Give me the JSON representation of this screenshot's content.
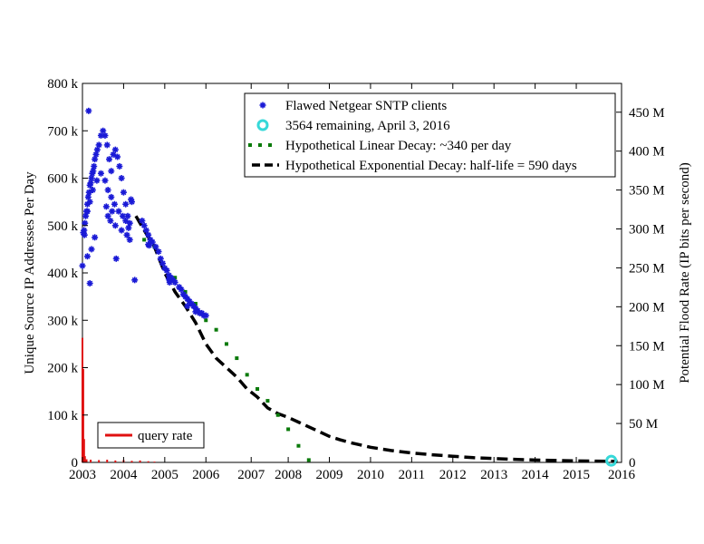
{
  "chart_data": {
    "type": "scatter",
    "x_axis": {
      "ticks": [
        {
          "value": 2003,
          "label": "2003"
        },
        {
          "value": 2004,
          "label": "2004"
        },
        {
          "value": 2005,
          "label": "2005"
        },
        {
          "value": 2006,
          "label": "2006"
        },
        {
          "value": 2007.1,
          "label": "2007"
        },
        {
          "value": 2008,
          "label": "2008"
        },
        {
          "value": 2009,
          "label": "2009"
        },
        {
          "value": 2010,
          "label": "2010"
        },
        {
          "value": 2011,
          "label": "2011"
        },
        {
          "value": 2012,
          "label": "2012"
        },
        {
          "value": 2013,
          "label": "2013"
        },
        {
          "value": 2014,
          "label": "2014"
        },
        {
          "value": 2015,
          "label": "2015"
        },
        {
          "value": 2016.1,
          "label": "2016"
        }
      ],
      "range": [
        2003,
        2016.1
      ]
    },
    "y_left": {
      "label": "Unique Source IP Addresses Per Day",
      "ticks": [
        {
          "value": 0,
          "label": "0"
        },
        {
          "value": 100000,
          "label": "100 k"
        },
        {
          "value": 200000,
          "label": "200 k"
        },
        {
          "value": 300000,
          "label": "300 k"
        },
        {
          "value": 400000,
          "label": "400 k"
        },
        {
          "value": 500000,
          "label": "500 k"
        },
        {
          "value": 600000,
          "label": "600 k"
        },
        {
          "value": 700000,
          "label": "700 k"
        },
        {
          "value": 800000,
          "label": "800 k"
        }
      ],
      "range": [
        0,
        800000
      ]
    },
    "y_right": {
      "label": "Potential Flood Rate (IP bits per second)",
      "ticks": [
        {
          "value": 0,
          "label": "0"
        },
        {
          "value": 50000000,
          "label": "50 M"
        },
        {
          "value": 100000000,
          "label": "100 M"
        },
        {
          "value": 150000000,
          "label": "150 M"
        },
        {
          "value": 200000000,
          "label": "200 M"
        },
        {
          "value": 250000000,
          "label": "250 M"
        },
        {
          "value": 300000000,
          "label": "300 M"
        },
        {
          "value": 350000000,
          "label": "350 M"
        },
        {
          "value": 400000000,
          "label": "400 M"
        },
        {
          "value": 450000000,
          "label": "450 M"
        }
      ],
      "range": [
        0,
        487000000
      ]
    },
    "legend": {
      "placement": "top-right",
      "entries": [
        {
          "label": "Flawed Netgear SNTP clients",
          "symbol": "star",
          "color": "#1a1ad6"
        },
        {
          "label": "3564 remaining, April 3, 2016",
          "symbol": "ring",
          "color": "#36d8d8"
        },
        {
          "label": "Hypothetical Linear Decay: ~340 per day",
          "symbol": "dotted",
          "color": "#0a7a0a"
        },
        {
          "label": "Hypothetical Exponential Decay: half-life = 590 days",
          "symbol": "dashed",
          "color": "#000000"
        }
      ]
    },
    "secondary_legend": {
      "placement": "bottom-left",
      "entries": [
        {
          "label": "query rate",
          "symbol": "line",
          "color": "#e01010"
        }
      ]
    },
    "series": [
      {
        "name": "Flawed Netgear SNTP clients",
        "color": "#1a1ad6",
        "points": [
          [
            2003.02,
            485000
          ],
          [
            2003.04,
            490000
          ],
          [
            2003.06,
            505000
          ],
          [
            2003.08,
            520000
          ],
          [
            2003.1,
            530000
          ],
          [
            2003.12,
            545000
          ],
          [
            2003.14,
            560000
          ],
          [
            2003.16,
            570000
          ],
          [
            2003.18,
            585000
          ],
          [
            2003.2,
            590000
          ],
          [
            2003.22,
            600000
          ],
          [
            2003.24,
            610000
          ],
          [
            2003.26,
            615000
          ],
          [
            2003.28,
            625000
          ],
          [
            2003.3,
            640000
          ],
          [
            2003.33,
            650000
          ],
          [
            2003.36,
            660000
          ],
          [
            2003.4,
            670000
          ],
          [
            2003.45,
            690000
          ],
          [
            2003.5,
            700000
          ],
          [
            2003.55,
            690000
          ],
          [
            2003.6,
            670000
          ],
          [
            2003.65,
            640000
          ],
          [
            2003.7,
            615000
          ],
          [
            2003.75,
            650000
          ],
          [
            2003.8,
            660000
          ],
          [
            2003.85,
            645000
          ],
          [
            2003.9,
            625000
          ],
          [
            2003.95,
            600000
          ],
          [
            2004.0,
            570000
          ],
          [
            2004.05,
            545000
          ],
          [
            2004.1,
            520000
          ],
          [
            2004.15,
            505000
          ],
          [
            2003.12,
            530000
          ],
          [
            2003.18,
            550000
          ],
          [
            2003.25,
            575000
          ],
          [
            2003.35,
            595000
          ],
          [
            2003.45,
            610000
          ],
          [
            2003.55,
            595000
          ],
          [
            2003.62,
            575000
          ],
          [
            2003.7,
            560000
          ],
          [
            2003.78,
            545000
          ],
          [
            2003.88,
            530000
          ],
          [
            2003.98,
            520000
          ],
          [
            2004.05,
            510000
          ],
          [
            2004.12,
            495000
          ],
          [
            2003.58,
            540000
          ],
          [
            2003.62,
            520000
          ],
          [
            2003.68,
            510000
          ],
          [
            2003.72,
            530000
          ],
          [
            2003.8,
            500000
          ],
          [
            2003.95,
            490000
          ],
          [
            2004.08,
            480000
          ],
          [
            2004.15,
            470000
          ],
          [
            2004.18,
            555000
          ],
          [
            2004.2,
            550000
          ],
          [
            2003.12,
            435000
          ],
          [
            2003.22,
            450000
          ],
          [
            2003.3,
            475000
          ],
          [
            2003.18,
            378000
          ],
          [
            2003.15,
            742000
          ],
          [
            2003.82,
            430000
          ],
          [
            2004.27,
            385000
          ],
          [
            2003.0,
            415000
          ],
          [
            2003.05,
            480000
          ],
          [
            2004.45,
            510000
          ],
          [
            2004.5,
            500000
          ],
          [
            2004.55,
            490000
          ],
          [
            2004.6,
            480000
          ],
          [
            2004.65,
            470000
          ],
          [
            2004.7,
            465000
          ],
          [
            2004.78,
            455000
          ],
          [
            2004.85,
            445000
          ],
          [
            2004.9,
            430000
          ],
          [
            2004.95,
            420000
          ],
          [
            2005.0,
            410000
          ],
          [
            2005.05,
            405000
          ],
          [
            2005.1,
            395000
          ],
          [
            2005.15,
            390000
          ],
          [
            2005.2,
            385000
          ],
          [
            2005.25,
            380000
          ],
          [
            2005.35,
            370000
          ],
          [
            2005.4,
            365000
          ],
          [
            2005.45,
            355000
          ],
          [
            2005.5,
            350000
          ],
          [
            2005.55,
            345000
          ],
          [
            2005.6,
            340000
          ],
          [
            2005.65,
            335000
          ],
          [
            2005.7,
            330000
          ],
          [
            2005.75,
            325000
          ],
          [
            2005.8,
            320000
          ],
          [
            2005.85,
            315000
          ],
          [
            2005.9,
            315000
          ],
          [
            2005.95,
            310000
          ],
          [
            2006.0,
            310000
          ],
          [
            2004.6,
            460000
          ],
          [
            2004.62,
            458000
          ],
          [
            2005.1,
            387000
          ],
          [
            2005.12,
            380000
          ],
          [
            2005.55,
            330000
          ],
          [
            2005.75,
            318000
          ]
        ]
      },
      {
        "name": "3564 remaining, April 3, 2016",
        "color": "#36d8d8",
        "points": [
          [
            2015.85,
            3564
          ]
        ]
      },
      {
        "name": "Hypothetical Linear Decay: ~340 per day",
        "color": "#0a7a0a",
        "points": [
          [
            2004.5,
            470000
          ],
          [
            2004.75,
            455000
          ],
          [
            2005.0,
            410000
          ],
          [
            2005.25,
            390000
          ],
          [
            2005.5,
            360000
          ],
          [
            2005.75,
            335000
          ],
          [
            2006.0,
            300000
          ],
          [
            2006.25,
            280000
          ],
          [
            2006.5,
            250000
          ],
          [
            2006.75,
            220000
          ],
          [
            2007.0,
            185000
          ],
          [
            2007.25,
            155000
          ],
          [
            2007.5,
            130000
          ],
          [
            2007.75,
            100000
          ],
          [
            2008.0,
            70000
          ],
          [
            2008.25,
            35000
          ],
          [
            2008.5,
            5000
          ]
        ]
      },
      {
        "name": "Hypothetical Exponential Decay: half-life = 590 days",
        "color": "#000000",
        "points": [
          [
            2004.3,
            520000
          ],
          [
            2004.5,
            490000
          ],
          [
            2004.75,
            455000
          ],
          [
            2005.0,
            400000
          ],
          [
            2005.25,
            360000
          ],
          [
            2005.5,
            330000
          ],
          [
            2005.75,
            295000
          ],
          [
            2006.0,
            250000
          ],
          [
            2006.25,
            220000
          ],
          [
            2006.5,
            200000
          ],
          [
            2006.75,
            180000
          ],
          [
            2007.0,
            155000
          ],
          [
            2007.25,
            138000
          ],
          [
            2007.5,
            115000
          ],
          [
            2007.75,
            103000
          ],
          [
            2008.0,
            95000
          ],
          [
            2008.25,
            85000
          ],
          [
            2008.5,
            75000
          ],
          [
            2008.75,
            65000
          ],
          [
            2009.0,
            55000
          ],
          [
            2009.25,
            48000
          ],
          [
            2009.5,
            42000
          ],
          [
            2009.75,
            37000
          ],
          [
            2010.0,
            32000
          ],
          [
            2010.5,
            25000
          ],
          [
            2011.0,
            20000
          ],
          [
            2011.5,
            16000
          ],
          [
            2012.0,
            13000
          ],
          [
            2012.5,
            10000
          ],
          [
            2013.0,
            8000
          ],
          [
            2013.5,
            6500
          ],
          [
            2014.0,
            5000
          ],
          [
            2014.5,
            4000
          ],
          [
            2015.0,
            3200
          ],
          [
            2015.5,
            2600
          ],
          [
            2016.0,
            2100
          ]
        ]
      },
      {
        "name": "query rate",
        "color": "#e01010",
        "points": [
          [
            2003.0,
            160000000
          ],
          [
            2003.02,
            120000000
          ],
          [
            2003.04,
            30000000
          ],
          [
            2003.06,
            8000000
          ],
          [
            2003.1,
            4000000
          ],
          [
            2003.2,
            3500000
          ],
          [
            2003.4,
            3000000
          ],
          [
            2003.6,
            3500000
          ],
          [
            2003.8,
            2500000
          ],
          [
            2004.0,
            3000000
          ],
          [
            2004.2,
            2000000
          ],
          [
            2004.4,
            2500000
          ],
          [
            2004.6,
            1500000
          ],
          [
            2004.75,
            1000000
          ]
        ]
      }
    ]
  }
}
